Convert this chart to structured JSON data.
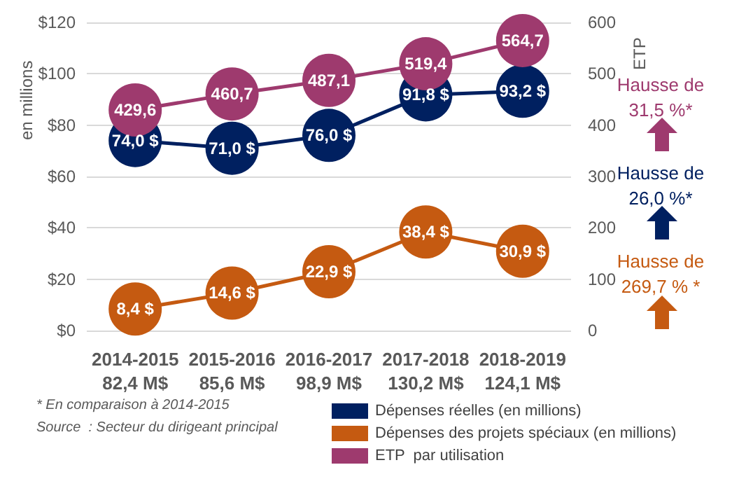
{
  "chart_data": {
    "type": "line",
    "ylabel": "en millions",
    "y2label": "ETP",
    "categories": [
      "2014-2015\n82,4 M$",
      "2015-2016\n85,6 M$",
      "2016-2017\n98,9 M$",
      "2017-2018\n130,2 M$",
      "2018-2019\n124,1 M$"
    ],
    "series": [
      {
        "name": "Dépenses réelles (en millions)",
        "color": "#002060",
        "values": [
          74.0,
          71.0,
          76.0,
          91.8,
          93.2
        ],
        "value_labels": [
          "74,0 $",
          "71,0 $",
          "76,0 $",
          "91,8 $",
          "93,2 $"
        ]
      },
      {
        "name": "Dépenses des projets spéciaux (en millions)",
        "color": "#c55a11",
        "values": [
          8.4,
          14.6,
          22.9,
          38.4,
          30.9
        ],
        "value_labels": [
          "8,4 $",
          "14,6 $",
          "22,9 $",
          "38,4 $",
          "30,9 $"
        ]
      },
      {
        "name": "ETP  par utilisation",
        "color": "#9e3a6e",
        "axis": "y2",
        "values": [
          429.6,
          460.7,
          487.1,
          519.4,
          564.7
        ],
        "value_labels": [
          "429,6",
          "460,7",
          "487,1",
          "519,4",
          "564,7"
        ]
      }
    ],
    "ylim": [
      0,
      120
    ],
    "yticks": [
      {
        "value": 0,
        "label": "$0"
      },
      {
        "value": 20,
        "label": "$20"
      },
      {
        "value": 40,
        "label": "$40"
      },
      {
        "value": 60,
        "label": "$60"
      },
      {
        "value": 80,
        "label": "$80"
      },
      {
        "value": 100,
        "label": "$100"
      },
      {
        "value": 120,
        "label": "$120"
      }
    ],
    "y2lim": [
      0,
      600
    ],
    "y2ticks": [
      0,
      100,
      200,
      300,
      400,
      500,
      600
    ],
    "grid": "y",
    "legend": "bottom",
    "marker": "circle",
    "line_style": "solid",
    "annotations": [
      "Hausse de\n31,5 %*",
      "Hausse de\n26,0 %*",
      "Hausse de\n269,7 % *",
      "* En comparaison à 2014-2015",
      "Source  : Secteur du dirigeant principal"
    ]
  }
}
